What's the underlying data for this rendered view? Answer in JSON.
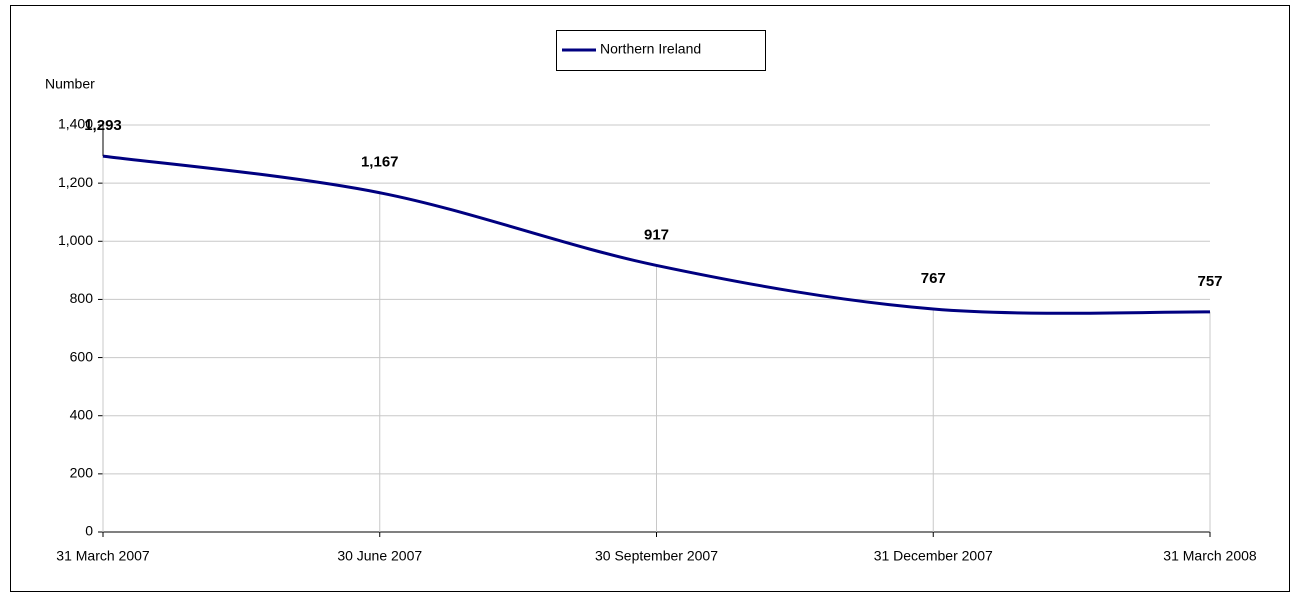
{
  "chart_data": {
    "type": "line",
    "y_label": "Number",
    "categories": [
      "31 March 2007",
      "30 June 2007",
      "30 September 2007",
      "31 December 2007",
      "31 March 2008"
    ],
    "series": [
      {
        "name": "Northern Ireland",
        "color": "#000080",
        "values": [
          1293,
          1167,
          917,
          767,
          757
        ],
        "value_labels": [
          "1,293",
          "1,167",
          "917",
          "767",
          "757"
        ]
      }
    ],
    "ylim": [
      0,
      1400
    ],
    "yticks": [
      0,
      200,
      400,
      600,
      800,
      {
        "value": 1000,
        "label": "1,000"
      },
      {
        "value": 1200,
        "label": "1,200"
      },
      {
        "value": 1400,
        "label": "1,400"
      }
    ],
    "grid": true,
    "drop_lines": true,
    "smooth": true,
    "legend": "top"
  }
}
